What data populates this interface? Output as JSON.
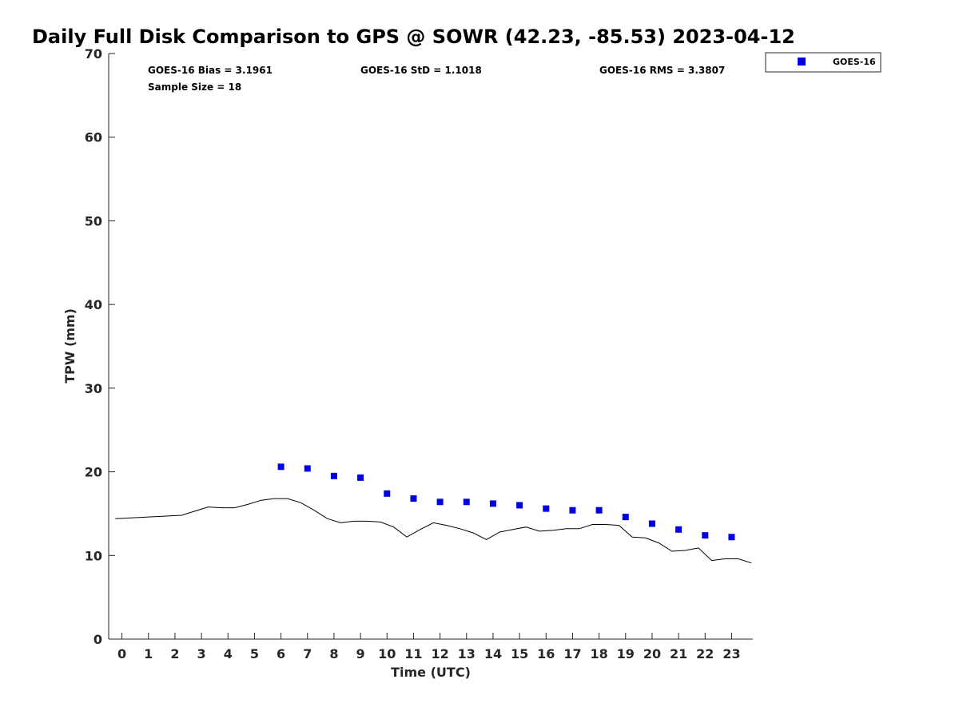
{
  "chart_data": {
    "type": "scatter",
    "title": "Daily Full Disk Comparison to GPS @ SOWR (42.23, -85.53) 2023-04-12",
    "xlabel": "Time (UTC)",
    "ylabel": "TPW (mm)",
    "xlim": [
      -0.5,
      23.8
    ],
    "ylim": [
      0,
      70
    ],
    "x_ticks": [
      0,
      1,
      2,
      3,
      4,
      5,
      6,
      7,
      8,
      9,
      10,
      11,
      12,
      13,
      14,
      15,
      16,
      17,
      18,
      19,
      20,
      21,
      22,
      23
    ],
    "y_ticks": [
      0,
      10,
      20,
      30,
      40,
      50,
      60,
      70
    ],
    "stats": {
      "bias": "GOES-16 Bias = 3.1961",
      "std": "GOES-16 StD = 1.1018",
      "rms": "GOES-16 RMS = 3.3807",
      "sample": "Sample Size = 18"
    },
    "legend": {
      "label": "GOES-16",
      "color": "#0000e0",
      "position": "top-right outside"
    },
    "series": [
      {
        "name": "GOES-16",
        "kind": "scatter",
        "color": "#0000e0",
        "x": [
          6,
          7,
          8,
          9,
          10,
          11,
          12,
          13,
          14,
          15,
          16,
          17,
          18,
          19,
          20,
          21,
          22,
          23
        ],
        "values": [
          20.6,
          20.4,
          19.5,
          19.3,
          17.4,
          16.8,
          16.4,
          16.4,
          16.2,
          16.0,
          15.6,
          15.4,
          15.4,
          14.6,
          13.8,
          13.1,
          12.4,
          12.2
        ]
      },
      {
        "name": "GPS",
        "kind": "line",
        "color": "#000000",
        "x": [
          -0.25,
          2.25,
          3.25,
          3.75,
          4.25,
          4.75,
          5.25,
          5.75,
          6.25,
          6.75,
          7.25,
          7.75,
          8.25,
          8.75,
          9.25,
          9.75,
          10.25,
          10.75,
          11.25,
          11.75,
          12.25,
          12.75,
          13.25,
          13.75,
          14.25,
          14.75,
          15.25,
          15.75,
          16.25,
          16.75,
          17.25,
          17.75,
          18.25,
          18.75,
          19.25,
          19.75,
          20.25,
          20.75,
          21.25,
          21.75,
          22.25,
          22.75,
          23.25,
          23.75
        ],
        "values": [
          14.4,
          14.8,
          15.8,
          15.7,
          15.7,
          16.1,
          16.6,
          16.8,
          16.8,
          16.3,
          15.4,
          14.4,
          13.9,
          14.1,
          14.1,
          14.0,
          13.4,
          12.2,
          13.1,
          13.9,
          13.6,
          13.2,
          12.7,
          11.9,
          12.8,
          13.1,
          13.4,
          12.9,
          13.0,
          13.2,
          13.2,
          13.7,
          13.7,
          13.6,
          12.2,
          12.1,
          11.5,
          10.5,
          10.6,
          10.9,
          9.4,
          9.6,
          9.6,
          9.1
        ]
      }
    ]
  }
}
